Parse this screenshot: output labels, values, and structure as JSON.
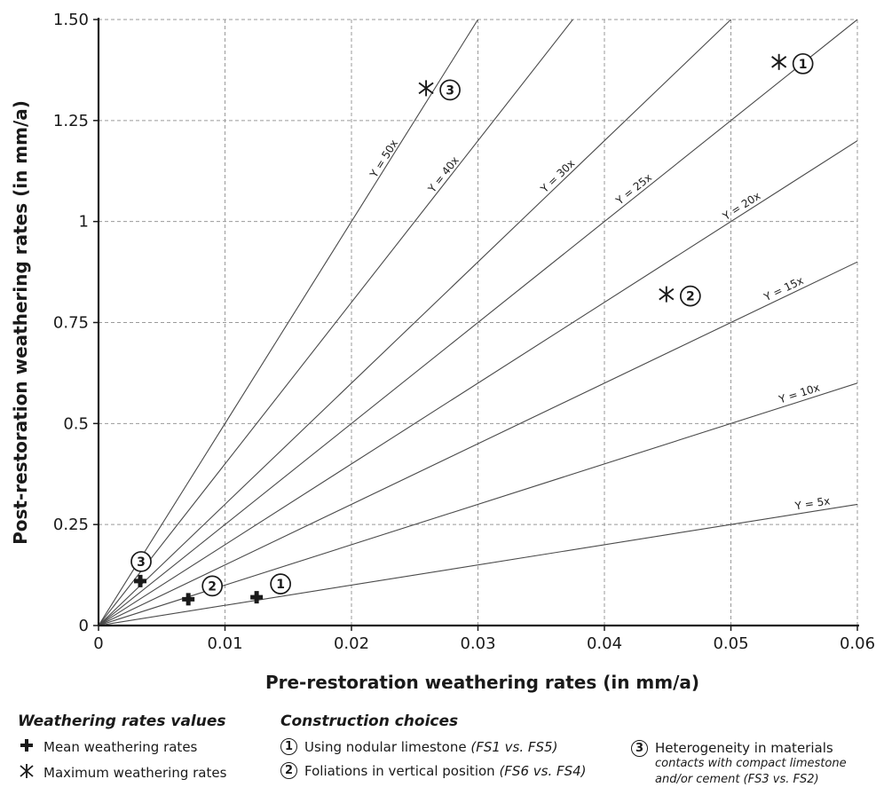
{
  "chart_data": {
    "type": "scatter",
    "xlabel": "Pre-restoration weathering rates (in mm/a)",
    "ylabel": "Post-restoration weathering rates (in mm/a)",
    "xlim": [
      0,
      0.06
    ],
    "ylim": [
      0,
      1.5
    ],
    "x_ticks": [
      "0",
      "0.01",
      "0.02",
      "0.03",
      "0.04",
      "0.05",
      "0.06"
    ],
    "x_tick_values": [
      0,
      0.01,
      0.02,
      0.03,
      0.04,
      0.05,
      0.06
    ],
    "y_ticks": [
      "0",
      "0.25",
      "0.5",
      "0.75",
      "1",
      "1.25",
      "1.50"
    ],
    "y_tick_values": [
      0,
      0.25,
      0.5,
      0.75,
      1,
      1.25,
      1.5
    ],
    "grid": true,
    "reference_lines": [
      {
        "label": "Y = 5x",
        "slope": 5,
        "label_x": 0.0565
      },
      {
        "label": "Y = 10x",
        "slope": 10,
        "label_x": 0.0555
      },
      {
        "label": "Y = 15x",
        "slope": 15,
        "label_x": 0.0543
      },
      {
        "label": "Y = 20x",
        "slope": 20,
        "label_x": 0.051
      },
      {
        "label": "Y = 25x",
        "slope": 25,
        "label_x": 0.0425
      },
      {
        "label": "Y = 30x",
        "slope": 30,
        "label_x": 0.0365
      },
      {
        "label": "Y = 40x",
        "slope": 40,
        "label_x": 0.0275
      },
      {
        "label": "Y = 50x",
        "slope": 50,
        "label_x": 0.0228
      }
    ],
    "series": [
      {
        "name": "Mean weathering rates",
        "marker": "plus",
        "points": [
          {
            "x": 0.0125,
            "y": 0.07,
            "label": "1"
          },
          {
            "x": 0.0071,
            "y": 0.065,
            "label": "2"
          },
          {
            "x": 0.0033,
            "y": 0.11,
            "label": "3"
          }
        ]
      },
      {
        "name": "Maximum weathering rates",
        "marker": "asterisk",
        "points": [
          {
            "x": 0.0538,
            "y": 1.395,
            "label": "1"
          },
          {
            "x": 0.0449,
            "y": 0.82,
            "label": "2"
          },
          {
            "x": 0.0259,
            "y": 1.33,
            "label": "3"
          }
        ]
      }
    ]
  },
  "legend": {
    "values_title": "Weathering rates values",
    "mean_label": "Mean weathering rates",
    "max_label": "Maximum weathering rates",
    "choices_title": "Construction choices",
    "choice1_num": "1",
    "choice1_text": "Using nodular limestone",
    "choice1_ref": "(FS1 vs. FS5)",
    "choice2_num": "2",
    "choice2_text": "Foliations in vertical position",
    "choice2_ref": "(FS6 vs. FS4)",
    "choice3_num": "3",
    "choice3_text": "Heterogeneity in materials",
    "choice3_sub1": "contacts with compact limestone",
    "choice3_sub2": "and/or cement (FS3 vs. FS2)"
  }
}
